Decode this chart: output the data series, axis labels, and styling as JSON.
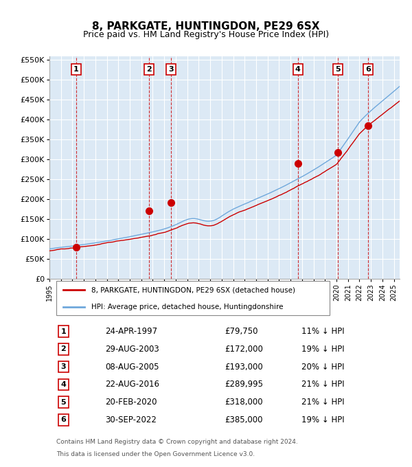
{
  "title": "8, PARKGATE, HUNTINGDON, PE29 6SX",
  "subtitle": "Price paid vs. HM Land Registry's House Price Index (HPI)",
  "title_fontsize": 12,
  "subtitle_fontsize": 10,
  "bg_color": "#dce9f5",
  "grid_color": "#ffffff",
  "ylabel_color": "#222222",
  "ylim": [
    0,
    560000
  ],
  "yticks": [
    0,
    50000,
    100000,
    150000,
    200000,
    250000,
    300000,
    350000,
    400000,
    450000,
    500000,
    550000
  ],
  "ytick_labels": [
    "£0",
    "£50K",
    "£100K",
    "£150K",
    "£200K",
    "£250K",
    "£300K",
    "£350K",
    "£400K",
    "£450K",
    "£500K",
    "£550K"
  ],
  "hpi_color": "#6fa8dc",
  "price_color": "#cc0000",
  "sale_marker_color": "#cc0000",
  "vline_color": "#cc0000",
  "sales": [
    {
      "num": 1,
      "date_num": 1997.32,
      "price": 79750,
      "label": "24-APR-1997",
      "pct": "11%"
    },
    {
      "num": 2,
      "date_num": 2003.66,
      "price": 172000,
      "label": "29-AUG-2003",
      "pct": "19%"
    },
    {
      "num": 3,
      "date_num": 2005.6,
      "price": 193000,
      "label": "08-AUG-2005",
      "pct": "20%"
    },
    {
      "num": 4,
      "date_num": 2016.64,
      "price": 289995,
      "label": "22-AUG-2016",
      "pct": "21%"
    },
    {
      "num": 5,
      "date_num": 2020.13,
      "price": 318000,
      "label": "20-FEB-2020",
      "pct": "21%"
    },
    {
      "num": 6,
      "date_num": 2022.75,
      "price": 385000,
      "label": "30-SEP-2022",
      "pct": "19%"
    }
  ],
  "legend_label1": "8, PARKGATE, HUNTINGDON, PE29 6SX (detached house)",
  "legend_label2": "HPI: Average price, detached house, Huntingdonshire",
  "footer1": "Contains HM Land Registry data © Crown copyright and database right 2024.",
  "footer2": "This data is licensed under the Open Government Licence v3.0."
}
